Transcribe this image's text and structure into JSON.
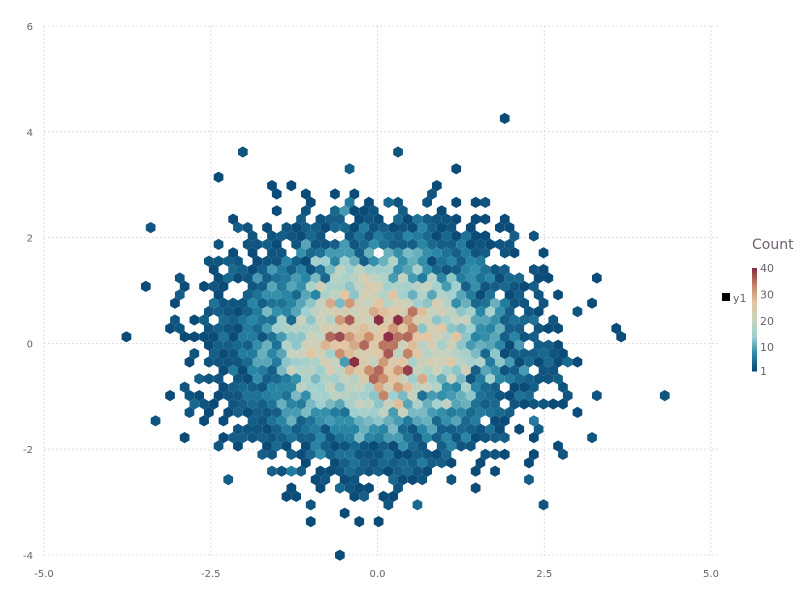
{
  "chart_data": {
    "type": "heatmap",
    "subtype": "hexbin",
    "title": "",
    "xlabel": "",
    "ylabel": "",
    "xlim": [
      -5,
      5
    ],
    "ylim": [
      -4,
      6
    ],
    "x_ticks": [
      "-5.0",
      "-2.5",
      "0.0",
      "2.5",
      "5.0"
    ],
    "x_tick_values": [
      -5,
      -2.5,
      0,
      2.5,
      5
    ],
    "y_ticks": [
      "-4",
      "-2",
      "0",
      "2",
      "4",
      "6"
    ],
    "y_tick_values": [
      -4,
      -2,
      0,
      2,
      4,
      6
    ],
    "grid": true,
    "distribution": "approximately bivariate standard normal, centered at (0,0)",
    "colorbar": {
      "title": "Count",
      "ticks": [
        "1",
        "10",
        "20",
        "30",
        "40"
      ],
      "tick_values": [
        1,
        10,
        20,
        30,
        40
      ],
      "range": [
        1,
        40
      ],
      "colors": [
        "#0a4b78",
        "#2b8aa8",
        "#9fd0cf",
        "#c9d2bd",
        "#e2c6a4",
        "#c98a6a",
        "#8a2f45"
      ]
    },
    "legend": {
      "position": "right",
      "entries": [
        {
          "label": "y1",
          "color": "#000000"
        }
      ]
    }
  }
}
